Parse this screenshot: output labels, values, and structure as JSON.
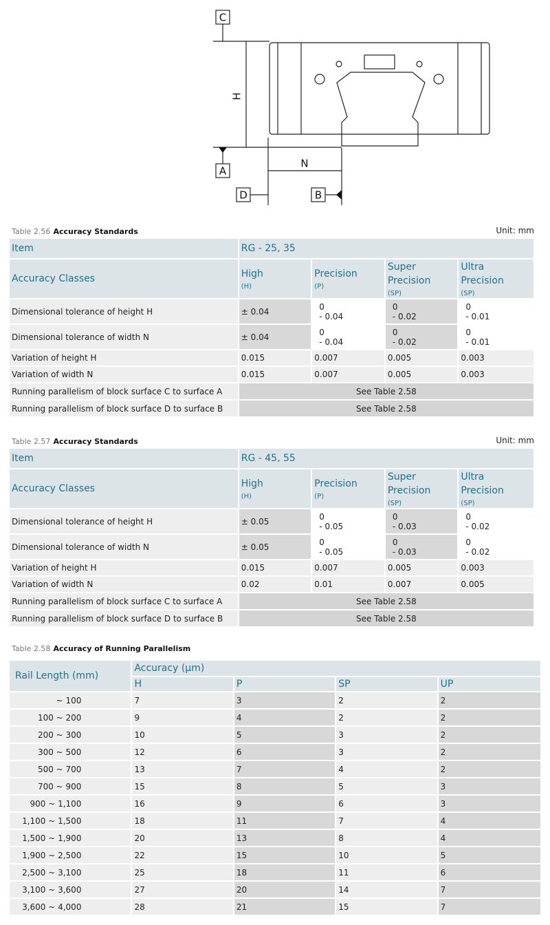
{
  "diagram": {
    "labels": {
      "c": "C",
      "h": "H",
      "a": "A",
      "n": "N",
      "d": "D",
      "b": "B"
    }
  },
  "tables": [
    {
      "caption_number": "Table 2.56",
      "caption_title": "Accuracy Standards",
      "unit": "Unit: mm",
      "item_header": "Item",
      "series_name": "RG - 25, 35",
      "classes_header": "Accuracy  Classes",
      "classes": [
        {
          "name": [
            "High"
          ],
          "code": "(H)"
        },
        {
          "name": [
            "Precision"
          ],
          "code": "(P)"
        },
        {
          "name": [
            "Super",
            "Precision"
          ],
          "code": "(SP)"
        },
        {
          "name": [
            "Ultra",
            "Precision"
          ],
          "code": "(SP)"
        }
      ],
      "rows": [
        {
          "label": "Dimensional tolerance of height H",
          "values": [
            [
              "± 0.04"
            ],
            [
              "0",
              "- 0.04"
            ],
            [
              "0",
              "- 0.02"
            ],
            [
              "0",
              "- 0.01"
            ]
          ]
        },
        {
          "label": "Dimensional tolerance of width N",
          "values": [
            [
              "± 0.04"
            ],
            [
              "0",
              "- 0.04"
            ],
            [
              "0",
              "- 0.02"
            ],
            [
              "0",
              "- 0.01"
            ]
          ]
        },
        {
          "label": "Variation of height H",
          "values": [
            [
              "0.015"
            ],
            [
              "0.007"
            ],
            [
              "0.005"
            ],
            [
              "0.003"
            ]
          ]
        },
        {
          "label": "Variation of width N",
          "values": [
            [
              "0.015"
            ],
            [
              "0.007"
            ],
            [
              "0.005"
            ],
            [
              "0.003"
            ]
          ]
        },
        {
          "label": "Running parallelism of block surface C to surface A",
          "merged": "See Table 2.58"
        },
        {
          "label": "Running parallelism of block surface D to surface B",
          "merged": "See Table 2.58"
        }
      ]
    },
    {
      "caption_number": "Table 2.57",
      "caption_title": "Accuracy Standards",
      "unit": "Unit: mm",
      "item_header": "Item",
      "series_name": "RG - 45, 55",
      "classes_header": "Accuracy  Classes",
      "classes": [
        {
          "name": [
            "High"
          ],
          "code": "(H)"
        },
        {
          "name": [
            "Precision"
          ],
          "code": "(P)"
        },
        {
          "name": [
            "Super",
            "Precision"
          ],
          "code": "(SP)"
        },
        {
          "name": [
            "Ultra",
            "Precision"
          ],
          "code": "(SP)"
        }
      ],
      "rows": [
        {
          "label": "Dimensional tolerance of height H",
          "values": [
            [
              "± 0.05"
            ],
            [
              "0",
              "- 0.05"
            ],
            [
              "0",
              "- 0.03"
            ],
            [
              "0",
              "- 0.02"
            ]
          ]
        },
        {
          "label": "Dimensional tolerance of width N",
          "values": [
            [
              "± 0.05"
            ],
            [
              "0",
              "- 0.05"
            ],
            [
              "0",
              "- 0.03"
            ],
            [
              "0",
              "- 0.02"
            ]
          ]
        },
        {
          "label": "Variation of height H",
          "values": [
            [
              "0.015"
            ],
            [
              "0.007"
            ],
            [
              "0.005"
            ],
            [
              "0.003"
            ]
          ]
        },
        {
          "label": "Variation of width N",
          "values": [
            [
              "0.02"
            ],
            [
              "0.01"
            ],
            [
              "0.007"
            ],
            [
              "0.005"
            ]
          ]
        },
        {
          "label": "Running parallelism of block surface C to surface A",
          "merged": "See Table 2.58"
        },
        {
          "label": "Running parallelism of block surface D to surface B",
          "merged": "See Table 2.58"
        }
      ]
    }
  ],
  "parallelism": {
    "caption_number": "Table 2.58",
    "caption_title": "Accuracy of Running Parallelism",
    "rail_header": "Rail Length (mm)",
    "accuracy_header": "Accuracy (μm)",
    "columns": [
      "H",
      "P",
      "SP",
      "UP"
    ],
    "rows": [
      {
        "length": "~ 100",
        "values": [
          "7",
          "3",
          "2",
          "2"
        ]
      },
      {
        "length": "100 ~ 200",
        "values": [
          "9",
          "4",
          "2",
          "2"
        ]
      },
      {
        "length": "200 ~ 300",
        "values": [
          "10",
          "5",
          "3",
          "2"
        ]
      },
      {
        "length": "300 ~ 500",
        "values": [
          "12",
          "6",
          "3",
          "2"
        ]
      },
      {
        "length": "500 ~ 700",
        "values": [
          "13",
          "7",
          "4",
          "2"
        ]
      },
      {
        "length": "700 ~ 900",
        "values": [
          "15",
          "8",
          "5",
          "3"
        ]
      },
      {
        "length": "900 ~ 1,100",
        "values": [
          "16",
          "9",
          "6",
          "3"
        ]
      },
      {
        "length": "1,100 ~ 1,500",
        "values": [
          "18",
          "11",
          "7",
          "4"
        ]
      },
      {
        "length": "1,500 ~ 1,900",
        "values": [
          "20",
          "13",
          "8",
          "4"
        ]
      },
      {
        "length": "1,900 ~ 2,500",
        "values": [
          "22",
          "15",
          "10",
          "5"
        ]
      },
      {
        "length": "2,500 ~ 3,100",
        "values": [
          "25",
          "18",
          "11",
          "6"
        ]
      },
      {
        "length": "3,100 ~ 3,600",
        "values": [
          "27",
          "20",
          "14",
          "7"
        ]
      },
      {
        "length": "3,600 ~ 4,000",
        "values": [
          "28",
          "21",
          "15",
          "7"
        ]
      }
    ]
  }
}
